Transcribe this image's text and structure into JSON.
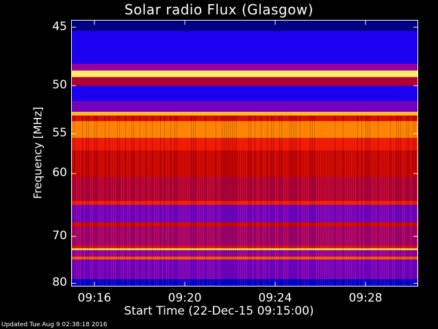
{
  "chart_data": {
    "type": "heatmap",
    "title": "Solar radio Flux (Glasgow)",
    "ylabel": "Frequency [MHz]",
    "xlabel": "Start Time (22-Dec-15 09:15:00)",
    "y_ticks": [
      45,
      50,
      55,
      60,
      70,
      80
    ],
    "x_ticks": [
      "09:16",
      "09:20",
      "09:24",
      "09:28"
    ],
    "x_tick_minutes": [
      16,
      20,
      24,
      28
    ],
    "x_range_minutes": [
      15.0,
      30.3
    ],
    "y_range_mhz": [
      44.5,
      80.6
    ],
    "y_scale": "reciprocal",
    "colormap": [
      "#000050",
      "#0000ff",
      "#9000b0",
      "#c00000",
      "#ff2000",
      "#ff9000",
      "#ffff80"
    ],
    "bands": [
      {
        "from": 44.5,
        "to": 45.3,
        "level": 0.05
      },
      {
        "from": 45.3,
        "to": 48.0,
        "level": 0.2
      },
      {
        "from": 48.0,
        "to": 48.6,
        "level": 0.35
      },
      {
        "from": 48.6,
        "to": 49.2,
        "level": 0.97
      },
      {
        "from": 49.2,
        "to": 50.0,
        "level": 0.45
      },
      {
        "from": 50.0,
        "to": 51.5,
        "level": 0.2
      },
      {
        "from": 51.5,
        "to": 52.6,
        "level": 0.3
      },
      {
        "from": 52.6,
        "to": 53.0,
        "level": 0.9
      },
      {
        "from": 53.0,
        "to": 53.6,
        "level": 0.55
      },
      {
        "from": 53.6,
        "to": 55.5,
        "level": 0.82
      },
      {
        "from": 55.5,
        "to": 57.0,
        "level": 0.62
      },
      {
        "from": 57.0,
        "to": 60.5,
        "level": 0.52
      },
      {
        "from": 60.5,
        "to": 64.0,
        "level": 0.45
      },
      {
        "from": 64.0,
        "to": 64.6,
        "level": 0.65
      },
      {
        "from": 64.6,
        "to": 67.5,
        "level": 0.3
      },
      {
        "from": 67.5,
        "to": 68.2,
        "level": 0.55
      },
      {
        "from": 68.2,
        "to": 71.8,
        "level": 0.4
      },
      {
        "from": 71.8,
        "to": 72.3,
        "level": 0.6
      },
      {
        "from": 72.3,
        "to": 72.7,
        "level": 0.95
      },
      {
        "from": 72.7,
        "to": 74.0,
        "level": 0.35
      },
      {
        "from": 74.0,
        "to": 74.6,
        "level": 0.75
      },
      {
        "from": 74.6,
        "to": 79.0,
        "level": 0.3
      },
      {
        "from": 79.0,
        "to": 80.6,
        "level": 0.12
      }
    ]
  },
  "footer": {
    "updated": "Updated Tue Aug  9 02:38:18 2016"
  }
}
